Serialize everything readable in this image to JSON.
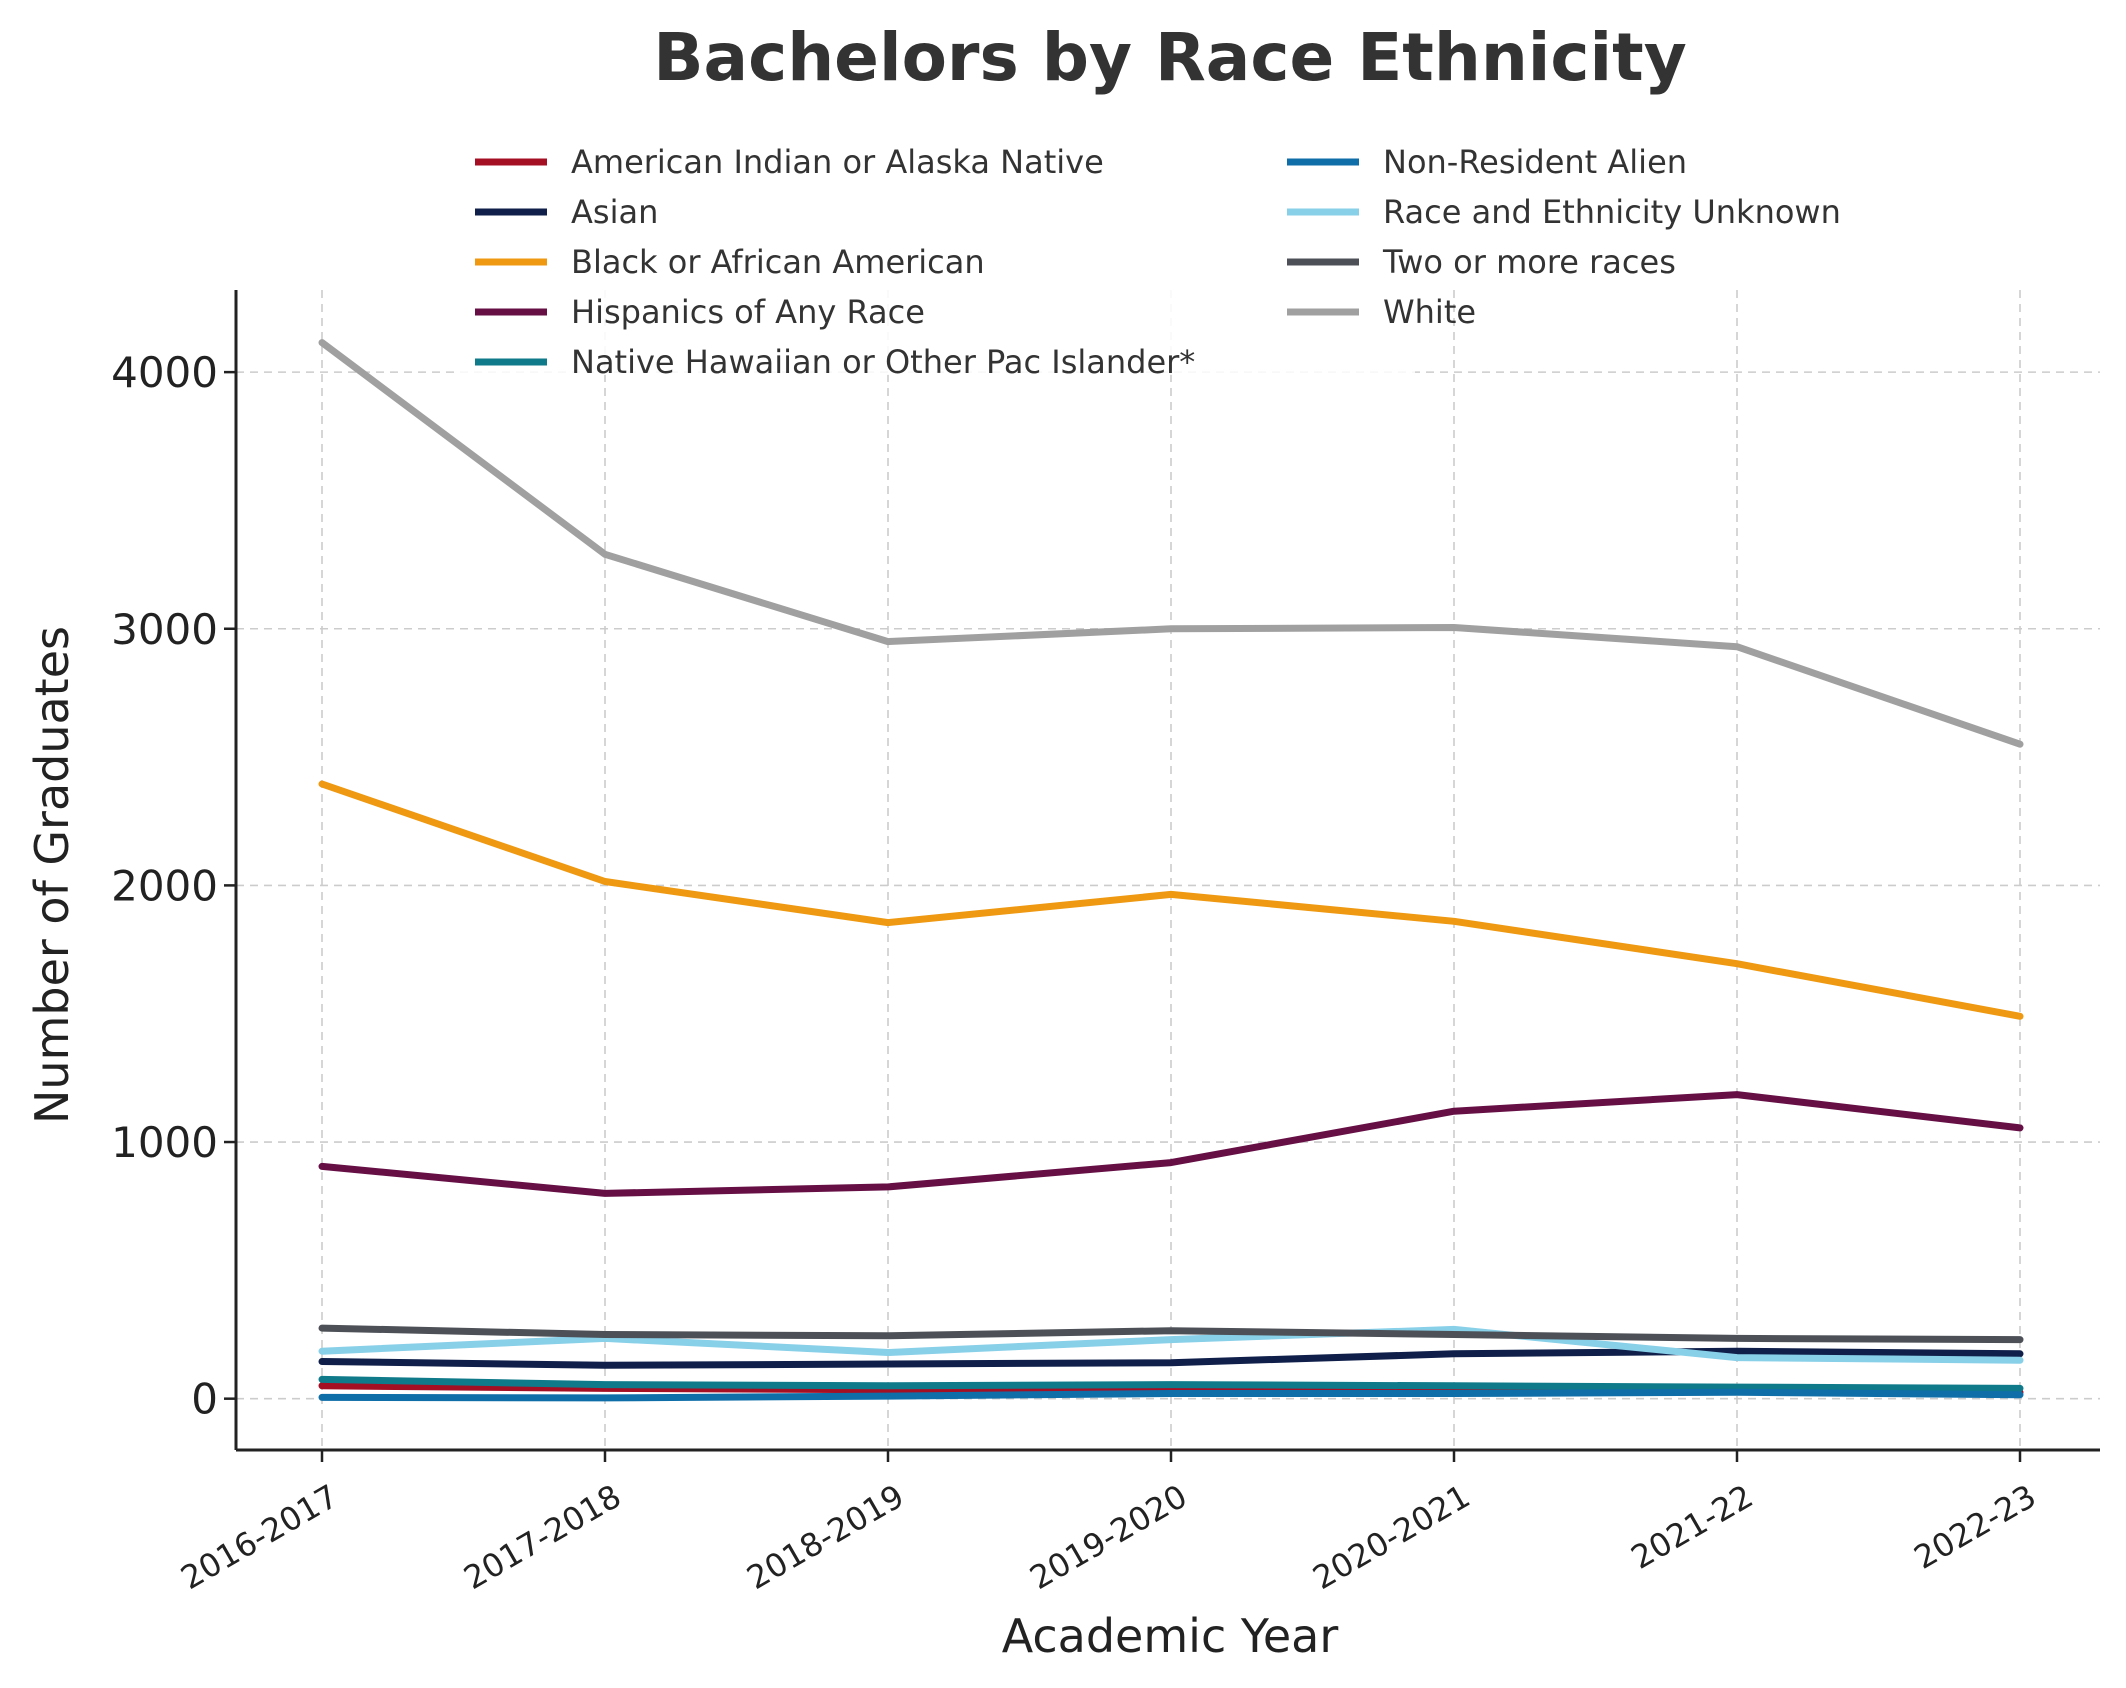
{
  "chart_data": {
    "type": "line",
    "title": "Bachelors by Race Ethnicity",
    "xlabel": "Academic Year",
    "ylabel": "Number of Graduates",
    "categories": [
      "2016-2017",
      "2017-2018",
      "2018-2019",
      "2019-2020",
      "2020-2021",
      "2021-22",
      "2022-23"
    ],
    "ylim": [
      -200,
      4320
    ],
    "yticks": [
      0,
      1000,
      2000,
      3000,
      4000
    ],
    "grid": true,
    "legend_position": "top-center",
    "series": [
      {
        "name": "American Indian or Alaska Native",
        "color": "#a50f24",
        "values": [
          50,
          40,
          35,
          40,
          40,
          30,
          25
        ]
      },
      {
        "name": "Asian",
        "color": "#0f1f4a",
        "values": [
          145,
          130,
          135,
          140,
          175,
          185,
          175
        ]
      },
      {
        "name": "Black or African American",
        "color": "#ee9911",
        "values": [
          2395,
          2015,
          1855,
          1965,
          1860,
          1695,
          1490
        ]
      },
      {
        "name": "Hispanics of Any Race",
        "color": "#650f45",
        "values": [
          905,
          800,
          825,
          920,
          1120,
          1185,
          1055
        ]
      },
      {
        "name": "Native Hawaiian or Other Pac Islander*",
        "color": "#0f7a8a",
        "values": [
          75,
          55,
          50,
          55,
          50,
          45,
          40
        ]
      },
      {
        "name": "Non-Resident Alien",
        "color": "#0f6ea8",
        "values": [
          5,
          3,
          10,
          20,
          20,
          25,
          15
        ]
      },
      {
        "name": "Race and Ethnicity Unknown",
        "color": "#88cfe8",
        "values": [
          185,
          235,
          180,
          230,
          270,
          160,
          150
        ]
      },
      {
        "name": "Two or more races",
        "color": "#4d5157",
        "values": [
          275,
          250,
          245,
          265,
          250,
          235,
          230
        ]
      },
      {
        "name": "White",
        "color": "#a0a0a0",
        "values": [
          4115,
          3290,
          2950,
          3000,
          3005,
          2930,
          2550
        ]
      }
    ]
  }
}
